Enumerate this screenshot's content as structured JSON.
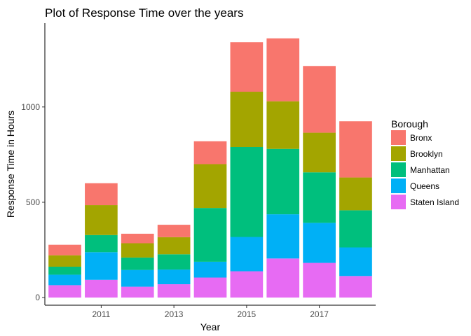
{
  "chart_data": {
    "type": "bar",
    "stacked": true,
    "title": "Plot of Response Time over the years",
    "xlabel": "Year",
    "ylabel": "Response Time in Hours",
    "categories": [
      2010,
      2011,
      2012,
      2013,
      2014,
      2015,
      2016,
      2017,
      2018
    ],
    "x_ticks": [
      2011,
      2013,
      2015,
      2017
    ],
    "y_ticks": [
      0,
      500,
      1000
    ],
    "xlim": [
      2009.45,
      2018.55
    ],
    "ylim": [
      -40,
      1440
    ],
    "grid": false,
    "legend": {
      "title": "Borough",
      "placement": "right"
    },
    "series": [
      {
        "name": "Staten Island",
        "color": "#E76BF3",
        "values": [
          65,
          93,
          57,
          70,
          105,
          138,
          205,
          182,
          113
        ]
      },
      {
        "name": "Queens",
        "color": "#00B0F6",
        "values": [
          55,
          145,
          88,
          77,
          83,
          180,
          232,
          210,
          150
        ]
      },
      {
        "name": "Manhattan",
        "color": "#00BF7D",
        "values": [
          42,
          90,
          65,
          80,
          282,
          472,
          343,
          265,
          195
        ]
      },
      {
        "name": "Brooklyn",
        "color": "#A3A500",
        "values": [
          60,
          157,
          75,
          90,
          230,
          290,
          250,
          208,
          172
        ]
      },
      {
        "name": "Bronx",
        "color": "#F8766D",
        "values": [
          55,
          115,
          50,
          65,
          120,
          260,
          330,
          350,
          295
        ]
      }
    ]
  }
}
